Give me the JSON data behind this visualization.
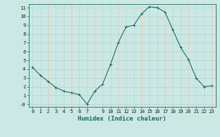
{
  "xlabel": "Humidex (Indice chaleur)",
  "ylabel": "",
  "x": [
    0,
    1,
    2,
    3,
    4,
    5,
    6,
    7,
    8,
    9,
    10,
    11,
    12,
    13,
    14,
    15,
    16,
    17,
    18,
    19,
    20,
    21,
    22,
    23
  ],
  "y": [
    4.2,
    3.3,
    2.6,
    1.9,
    1.5,
    1.3,
    1.1,
    0.0,
    1.5,
    2.3,
    4.5,
    7.0,
    8.8,
    9.0,
    10.3,
    11.1,
    11.0,
    10.5,
    8.5,
    6.5,
    5.1,
    3.0,
    2.0,
    2.1
  ],
  "line_color": "#1a6b5e",
  "marker": "+",
  "bg_color": "#cce8e4",
  "grid_color_h": "#aad4d0",
  "grid_color_v": "#e8c4b4",
  "ylim": [
    -0.3,
    11.4
  ],
  "xlim": [
    -0.5,
    23.5
  ],
  "yticks": [
    0,
    1,
    2,
    3,
    4,
    5,
    6,
    7,
    8,
    9,
    10,
    11
  ],
  "xticks": [
    0,
    1,
    2,
    3,
    4,
    5,
    6,
    7,
    9,
    10,
    11,
    12,
    13,
    14,
    15,
    16,
    17,
    18,
    19,
    20,
    21,
    22,
    23
  ],
  "tick_fontsize": 5.0,
  "label_fontsize": 6.5
}
